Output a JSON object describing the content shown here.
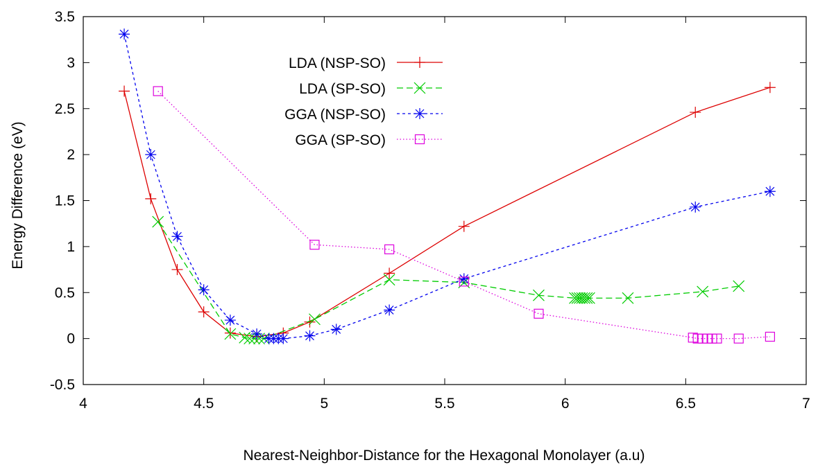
{
  "chart_data": {
    "type": "line",
    "title": "",
    "xlabel": "Nearest-Neighbor-Distance for the Hexagonal Monolayer (a.u)",
    "ylabel": "Energy Difference (eV)",
    "xlim": [
      4,
      7
    ],
    "ylim": [
      -0.5,
      3.5
    ],
    "xticks": [
      {
        "value": 4,
        "label": "4"
      },
      {
        "value": 4.5,
        "label": "4.5"
      },
      {
        "value": 5,
        "label": "5"
      },
      {
        "value": 5.5,
        "label": "5.5"
      },
      {
        "value": 6,
        "label": "6"
      },
      {
        "value": 6.5,
        "label": "6.5"
      },
      {
        "value": 7,
        "label": "7"
      }
    ],
    "yticks": [
      {
        "value": -0.5,
        "label": "-0.5"
      },
      {
        "value": 0,
        "label": "0"
      },
      {
        "value": 0.5,
        "label": "0.5"
      },
      {
        "value": 1,
        "label": "1"
      },
      {
        "value": 1.5,
        "label": "1.5"
      },
      {
        "value": 2,
        "label": "2"
      },
      {
        "value": 2.5,
        "label": "2.5"
      },
      {
        "value": 3,
        "label": "3"
      },
      {
        "value": 3.5,
        "label": "3.5"
      }
    ],
    "grid": false,
    "legend_position": "top-left",
    "series": [
      {
        "name": "LDA (NSP-SO)",
        "color": "#dd0000",
        "marker": "plus",
        "dash": "solid",
        "points": [
          [
            4.17,
            2.69
          ],
          [
            4.28,
            1.52
          ],
          [
            4.39,
            0.75
          ],
          [
            4.5,
            0.29
          ],
          [
            4.61,
            0.06
          ],
          [
            4.72,
            0.02
          ],
          [
            4.83,
            0.06
          ],
          [
            4.94,
            0.18
          ],
          [
            5.27,
            0.71
          ],
          [
            5.58,
            1.22
          ],
          [
            6.54,
            2.46
          ],
          [
            6.85,
            2.73
          ]
        ]
      },
      {
        "name": "LDA (SP-SO)",
        "color": "#00cc00",
        "marker": "x",
        "dash": "dashed",
        "points": [
          [
            4.31,
            1.27
          ],
          [
            4.61,
            0.05
          ],
          [
            4.67,
            0.01
          ],
          [
            4.69,
            0.0
          ],
          [
            4.71,
            0.0
          ],
          [
            4.73,
            0.0
          ],
          [
            4.75,
            0.0
          ],
          [
            4.96,
            0.21
          ],
          [
            5.27,
            0.64
          ],
          [
            5.58,
            0.61
          ],
          [
            5.89,
            0.47
          ],
          [
            6.04,
            0.44
          ],
          [
            6.05,
            0.44
          ],
          [
            6.06,
            0.44
          ],
          [
            6.07,
            0.44
          ],
          [
            6.08,
            0.44
          ],
          [
            6.09,
            0.44
          ],
          [
            6.1,
            0.44
          ],
          [
            6.26,
            0.44
          ],
          [
            6.57,
            0.51
          ],
          [
            6.72,
            0.57
          ]
        ]
      },
      {
        "name": "GGA (NSP-SO)",
        "color": "#0000ee",
        "marker": "star",
        "dash": "dotted",
        "points": [
          [
            4.17,
            3.31
          ],
          [
            4.28,
            2.0
          ],
          [
            4.39,
            1.11
          ],
          [
            4.5,
            0.53
          ],
          [
            4.61,
            0.2
          ],
          [
            4.72,
            0.05
          ],
          [
            4.77,
            0.0
          ],
          [
            4.79,
            0.0
          ],
          [
            4.81,
            0.0
          ],
          [
            4.83,
            0.0
          ],
          [
            4.94,
            0.03
          ],
          [
            5.05,
            0.1
          ],
          [
            5.27,
            0.31
          ],
          [
            5.58,
            0.65
          ],
          [
            6.54,
            1.43
          ],
          [
            6.85,
            1.6
          ]
        ]
      },
      {
        "name": "GGA (SP-SO)",
        "color": "#dd00dd",
        "marker": "square",
        "dash": "fine-dotted",
        "points": [
          [
            4.31,
            2.69
          ],
          [
            4.96,
            1.02
          ],
          [
            5.27,
            0.97
          ],
          [
            5.58,
            0.62
          ],
          [
            5.89,
            0.27
          ],
          [
            6.53,
            0.01
          ],
          [
            6.55,
            0.0
          ],
          [
            6.57,
            0.0
          ],
          [
            6.59,
            0.0
          ],
          [
            6.61,
            0.0
          ],
          [
            6.63,
            0.0
          ],
          [
            6.72,
            0.0
          ],
          [
            6.85,
            0.02
          ]
        ]
      }
    ]
  }
}
